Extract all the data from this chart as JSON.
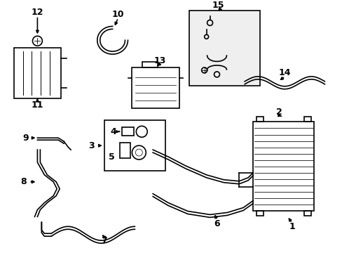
{
  "background_color": "#ffffff",
  "line_color": "#000000",
  "line_width": 1.2,
  "label_fontsize": 9
}
